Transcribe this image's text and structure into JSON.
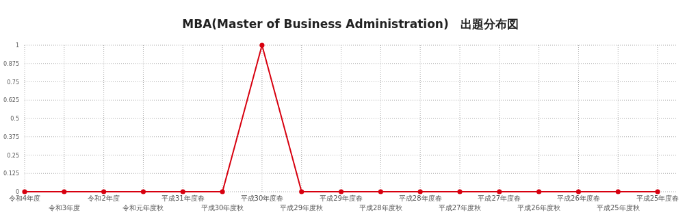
{
  "chart_data": {
    "type": "line",
    "title": "MBA(Master of Business Administration)　出題分布図",
    "categories": [
      "令和4年度",
      "令和3年度",
      "令和2年度",
      "令和元年度秋",
      "平成31年度春",
      "平成30年度秋",
      "平成30年度春",
      "平成29年度秋",
      "平成29年度春",
      "平成28年度秋",
      "平成28年度春",
      "平成27年度秋",
      "平成27年度春",
      "平成26年度秋",
      "平成26年度春",
      "平成25年度秋",
      "平成25年度春"
    ],
    "series": [
      {
        "color": "#d7000f",
        "values": [
          0,
          0,
          0,
          0,
          0,
          0,
          1,
          0,
          0,
          0,
          0,
          0,
          0,
          0,
          0,
          0,
          0
        ]
      }
    ],
    "ylim": [
      0,
      1
    ],
    "yticks": [
      0,
      0.125,
      0.25,
      0.375,
      0.5,
      0.625,
      0.75,
      0.875,
      1
    ],
    "grid": true,
    "marker": "circle"
  }
}
